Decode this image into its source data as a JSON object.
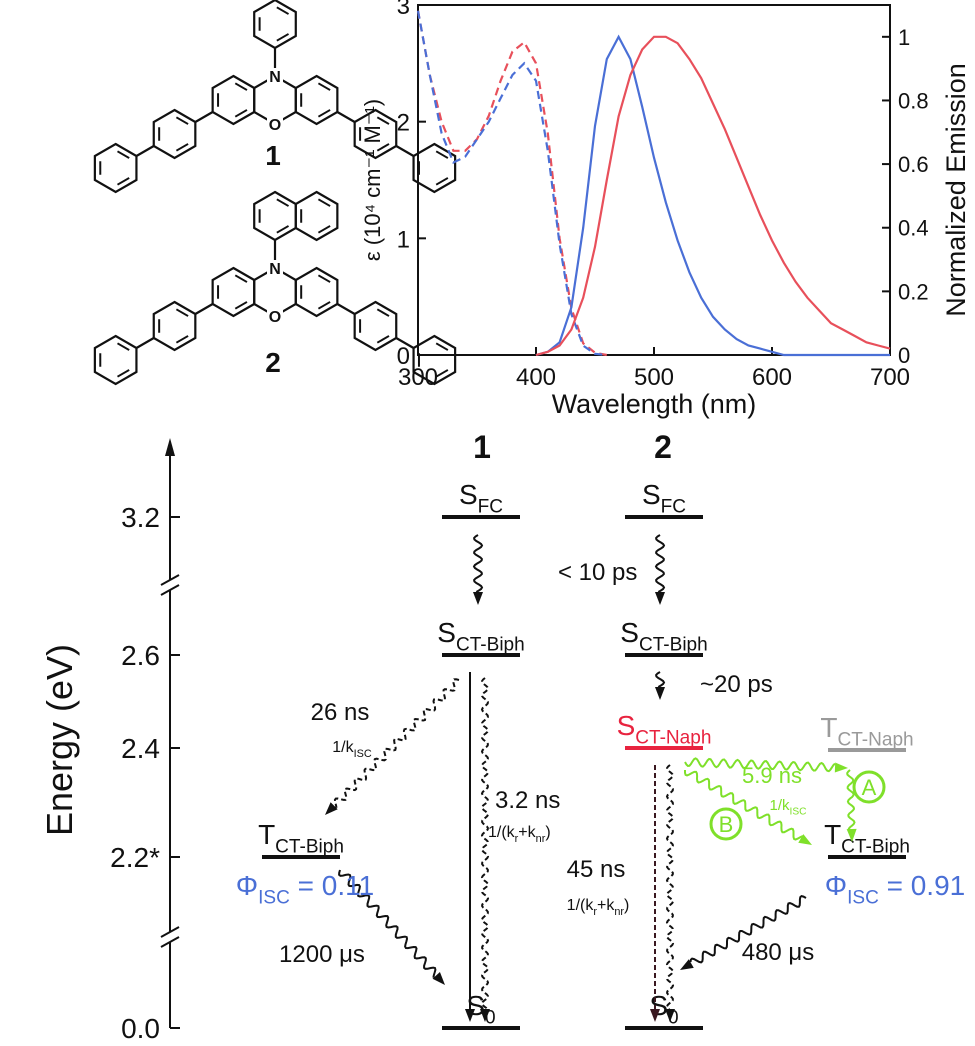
{
  "chart_data": {
    "type": "line",
    "x": [
      300,
      310,
      320,
      330,
      340,
      350,
      360,
      370,
      380,
      390,
      400,
      410,
      420,
      430,
      440,
      450,
      460,
      470,
      480,
      490,
      500,
      510,
      520,
      530,
      540,
      550,
      560,
      570,
      580,
      590,
      600,
      610,
      620,
      630,
      640,
      650,
      660,
      670,
      680,
      690,
      700
    ],
    "xlim": [
      300,
      700
    ],
    "xticks": [
      300,
      400,
      500,
      600,
      700
    ],
    "ylim": [
      0,
      3
    ],
    "yticks": [
      0,
      1,
      2,
      3
    ],
    "y2lim": [
      0,
      1.1
    ],
    "y2ticks": [
      0,
      0.2,
      0.4,
      0.6,
      0.8,
      1
    ],
    "xlabel": "Wavelength (nm)",
    "ylabel": "ε (10⁴ cm⁻¹ M⁻¹)",
    "y2label": "Normalized Emission",
    "series": [
      {
        "color": "#e8505b",
        "dash": true,
        "values": [
          2.95,
          2.4,
          2.0,
          1.75,
          1.75,
          1.85,
          2.05,
          2.35,
          2.6,
          2.68,
          2.5,
          1.9,
          1.0,
          0.4,
          0.1,
          0.02,
          0,
          null,
          null,
          null,
          null,
          null,
          null,
          null,
          null,
          null,
          null,
          null,
          null,
          null,
          null,
          null,
          null,
          null,
          null,
          null,
          null,
          null,
          null,
          null,
          null
        ]
      },
      {
        "color": "#4a6fd6",
        "dash": true,
        "values": [
          2.95,
          2.4,
          1.9,
          1.65,
          1.7,
          1.85,
          2.0,
          2.2,
          2.4,
          2.5,
          2.35,
          1.75,
          0.95,
          0.35,
          0.08,
          0.01,
          0,
          null,
          null,
          null,
          null,
          null,
          null,
          null,
          null,
          null,
          null,
          null,
          null,
          null,
          null,
          null,
          null,
          null,
          null,
          null,
          null,
          null,
          null,
          null,
          null
        ]
      },
      {
        "color": "#4a6fd6",
        "axis": "y2",
        "values": [
          null,
          null,
          null,
          null,
          null,
          null,
          null,
          null,
          null,
          null,
          0,
          0.01,
          0.04,
          0.15,
          0.4,
          0.72,
          0.93,
          1.0,
          0.93,
          0.78,
          0.62,
          0.48,
          0.36,
          0.26,
          0.18,
          0.12,
          0.08,
          0.05,
          0.03,
          0.02,
          0.01,
          0,
          0,
          0,
          0,
          0,
          0,
          0,
          0,
          0,
          0
        ]
      },
      {
        "color": "#e8505b",
        "axis": "y2",
        "values": [
          null,
          null,
          null,
          null,
          null,
          null,
          null,
          null,
          null,
          null,
          0,
          0.01,
          0.03,
          0.08,
          0.18,
          0.34,
          0.55,
          0.75,
          0.88,
          0.96,
          1.0,
          1.0,
          0.98,
          0.93,
          0.87,
          0.79,
          0.71,
          0.62,
          0.53,
          0.44,
          0.36,
          0.29,
          0.23,
          0.18,
          0.14,
          0.1,
          0.08,
          0.06,
          0.04,
          0.03,
          0.02
        ]
      }
    ]
  },
  "molecules": {
    "labels": [
      "1",
      "2"
    ]
  },
  "diagram": {
    "axis_label": "Energy (eV)",
    "axis_ticks": [
      "3.2",
      "2.6",
      "2.4",
      "2.2*",
      "0.0"
    ],
    "columns": [
      "1",
      "2"
    ],
    "states": [
      {
        "parts": [
          "S",
          "FC"
        ]
      },
      {
        "parts": [
          "S",
          "CT-Biph"
        ]
      },
      {
        "parts": [
          "T",
          "CT-Biph"
        ]
      },
      {
        "parts": [
          "S",
          "0"
        ]
      },
      {
        "parts": [
          "S",
          "FC"
        ]
      },
      {
        "parts": [
          "S",
          "CT-Biph"
        ]
      },
      {
        "parts": [
          "S",
          "CT-Naph"
        ]
      },
      {
        "parts": [
          "T",
          "CT-Naph"
        ]
      },
      {
        "parts": [
          "T",
          "CT-Biph"
        ]
      },
      {
        "parts": [
          "S",
          "0"
        ]
      }
    ],
    "labels": [
      {
        "parts": [
          "< 10 ps"
        ]
      },
      {
        "parts": [
          "~20 ps"
        ]
      },
      {
        "parts": [
          "26 ns"
        ]
      },
      {
        "parts": [
          "1/k",
          "ISC"
        ]
      },
      {
        "parts": [
          "3.2 ns"
        ]
      },
      {
        "parts": [
          "1/(k",
          "r",
          "+k",
          "nr",
          ")"
        ]
      },
      {
        "parts": [
          "45 ns"
        ]
      },
      {
        "parts": [
          "1/(k",
          "r",
          "+k",
          "nr",
          ")"
        ]
      },
      {
        "parts": [
          "5.9 ns"
        ]
      },
      {
        "parts": [
          "1/k",
          "ISC"
        ]
      },
      {
        "parts": [
          "Φ",
          "ISC",
          " = 0.11"
        ]
      },
      {
        "parts": [
          "Φ",
          "ISC",
          " = 0.91"
        ]
      },
      {
        "parts": [
          "1200 μs"
        ]
      },
      {
        "parts": [
          "480 μs"
        ]
      },
      {
        "parts": [
          "A"
        ]
      },
      {
        "parts": [
          "B"
        ]
      }
    ]
  }
}
